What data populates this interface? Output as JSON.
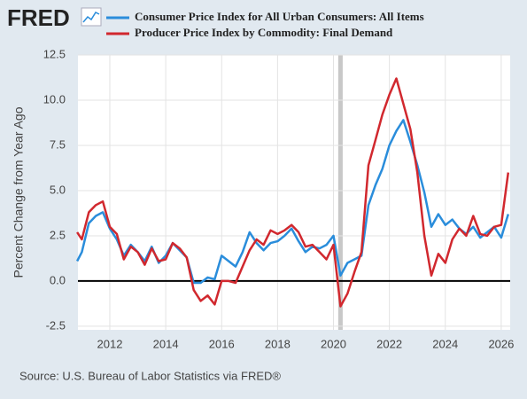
{
  "logo": "FRED",
  "source": "Source: U.S. Bureau of Labor Statistics via FRED®",
  "chart_data": {
    "type": "line",
    "y_label": "Percent Change from Year Ago",
    "x": [
      2010.83,
      2011.0,
      2011.25,
      2011.5,
      2011.75,
      2012.0,
      2012.25,
      2012.5,
      2012.75,
      2013.0,
      2013.25,
      2013.5,
      2013.75,
      2014.0,
      2014.25,
      2014.5,
      2014.75,
      2015.0,
      2015.25,
      2015.5,
      2015.75,
      2016.0,
      2016.25,
      2016.5,
      2016.75,
      2017.0,
      2017.25,
      2017.5,
      2017.75,
      2018.0,
      2018.25,
      2018.5,
      2018.75,
      2019.0,
      2019.25,
      2019.5,
      2019.75,
      2020.0,
      2020.25,
      2020.5,
      2020.75,
      2021.0,
      2021.25,
      2021.5,
      2021.75,
      2022.0,
      2022.25,
      2022.5,
      2022.75,
      2023.0,
      2023.25,
      2023.5,
      2023.75,
      2024.0,
      2024.25,
      2024.5,
      2024.75,
      2025.0,
      2025.25,
      2025.5,
      2025.75,
      2026.0,
      2026.25
    ],
    "series": [
      {
        "name": "Consumer Price Index for All Urban Consumers: All Items",
        "color": "#2a8ddb",
        "values": [
          1.1,
          1.6,
          3.2,
          3.6,
          3.8,
          2.9,
          2.3,
          1.4,
          2.0,
          1.6,
          1.1,
          1.9,
          1.0,
          1.4,
          2.1,
          1.7,
          1.3,
          -0.1,
          -0.1,
          0.2,
          0.1,
          1.4,
          1.1,
          0.8,
          1.6,
          2.7,
          2.1,
          1.7,
          2.1,
          2.2,
          2.5,
          2.9,
          2.2,
          1.6,
          1.9,
          1.8,
          2.0,
          2.5,
          0.3,
          1.0,
          1.2,
          1.4,
          4.2,
          5.3,
          6.2,
          7.5,
          8.3,
          8.9,
          7.7,
          6.4,
          4.9,
          3.0,
          3.7,
          3.1,
          3.4,
          2.9,
          2.6,
          3.0,
          2.4,
          2.7,
          3.0,
          2.4,
          3.7
        ]
      },
      {
        "name": "Producer Price Index by Commodity: Final Demand",
        "color": "#d1282e",
        "values": [
          2.7,
          2.3,
          3.8,
          4.2,
          4.4,
          3.0,
          2.6,
          1.2,
          1.9,
          1.6,
          0.9,
          1.8,
          1.1,
          1.2,
          2.1,
          1.8,
          1.3,
          -0.5,
          -1.1,
          -0.8,
          -1.3,
          0.0,
          0.0,
          -0.1,
          0.8,
          1.7,
          2.3,
          2.0,
          2.8,
          2.6,
          2.8,
          3.1,
          2.7,
          1.9,
          2.0,
          1.6,
          1.2,
          2.0,
          -1.4,
          -0.7,
          0.5,
          1.6,
          6.4,
          7.8,
          9.2,
          10.3,
          11.2,
          9.8,
          8.4,
          6.0,
          2.5,
          0.3,
          1.5,
          1.0,
          2.3,
          2.9,
          2.5,
          3.6,
          2.6,
          2.5,
          3.0,
          3.1,
          6.0
        ]
      }
    ],
    "recession": [
      2020.17,
      2020.33
    ],
    "xlim": [
      2010.86,
      2026.32
    ],
    "xticks": [
      2012,
      2014,
      2016,
      2018,
      2020,
      2022,
      2024,
      2026
    ],
    "ylim": [
      -2.7,
      12.5
    ],
    "yticks": [
      12.5,
      {
        "value": 10,
        "label": "10.0"
      },
      7.5,
      {
        "value": 5,
        "label": "5.0"
      },
      2.5,
      {
        "value": 0,
        "label": "0.0"
      },
      -2.5
    ],
    "grid": true
  }
}
